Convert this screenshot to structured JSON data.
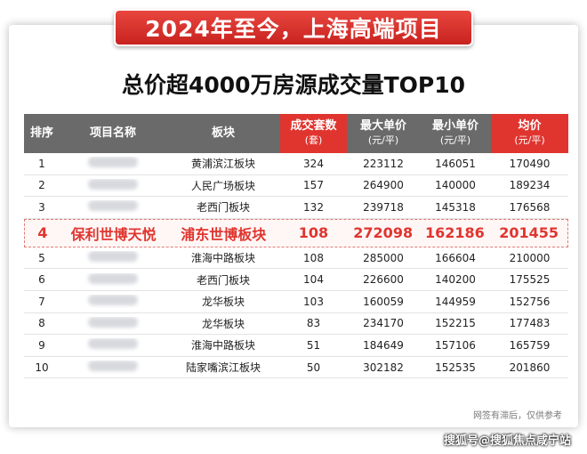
{
  "banner": "2024年至今，上海高端项目",
  "subtitle": "总价超4000万房源成交量TOP10",
  "headers": [
    {
      "label": "排序",
      "unit": ""
    },
    {
      "label": "项目名称",
      "unit": ""
    },
    {
      "label": "板块",
      "unit": ""
    },
    {
      "label": "成交套数",
      "unit": "(套)"
    },
    {
      "label": "最大单价",
      "unit": "(元/平)"
    },
    {
      "label": "最小单价",
      "unit": "(元/平)"
    },
    {
      "label": "均价",
      "unit": "(元/平)"
    }
  ],
  "colors": {
    "accent": "#e0352f",
    "header_bg": "#6a6a6a"
  },
  "rows": [
    {
      "rank": "1",
      "name": "",
      "area": "黄浦滨江板块",
      "units": "324",
      "max": "223112",
      "min": "146051",
      "avg": "170490"
    },
    {
      "rank": "2",
      "name": "",
      "area": "人民广场板块",
      "units": "157",
      "max": "264900",
      "min": "140000",
      "avg": "189234"
    },
    {
      "rank": "3",
      "name": "",
      "area": "老西门板块",
      "units": "132",
      "max": "239718",
      "min": "145318",
      "avg": "176568"
    },
    {
      "rank": "4",
      "name": "保利世博天悦",
      "area": "浦东世博板块",
      "units": "108",
      "max": "272098",
      "min": "162186",
      "avg": "201455"
    },
    {
      "rank": "5",
      "name": "",
      "area": "淮海中路板块",
      "units": "108",
      "max": "285000",
      "min": "166604",
      "avg": "210000"
    },
    {
      "rank": "6",
      "name": "",
      "area": "老西门板块",
      "units": "104",
      "max": "226600",
      "min": "140200",
      "avg": "175525"
    },
    {
      "rank": "7",
      "name": "",
      "area": "龙华板块",
      "units": "103",
      "max": "160059",
      "min": "144959",
      "avg": "152756"
    },
    {
      "rank": "8",
      "name": "",
      "area": "龙华板块",
      "units": "83",
      "max": "234170",
      "min": "152215",
      "avg": "177483"
    },
    {
      "rank": "9",
      "name": "",
      "area": "淮海中路板块",
      "units": "51",
      "max": "184649",
      "min": "157106",
      "avg": "165759"
    },
    {
      "rank": "10",
      "name": "",
      "area": "陆家嘴滨江板块",
      "units": "50",
      "max": "302182",
      "min": "152535",
      "avg": "201860"
    }
  ],
  "note": "网签有滞后，仅供参考",
  "watermark": "搜狐号@搜狐焦点咸宁站"
}
